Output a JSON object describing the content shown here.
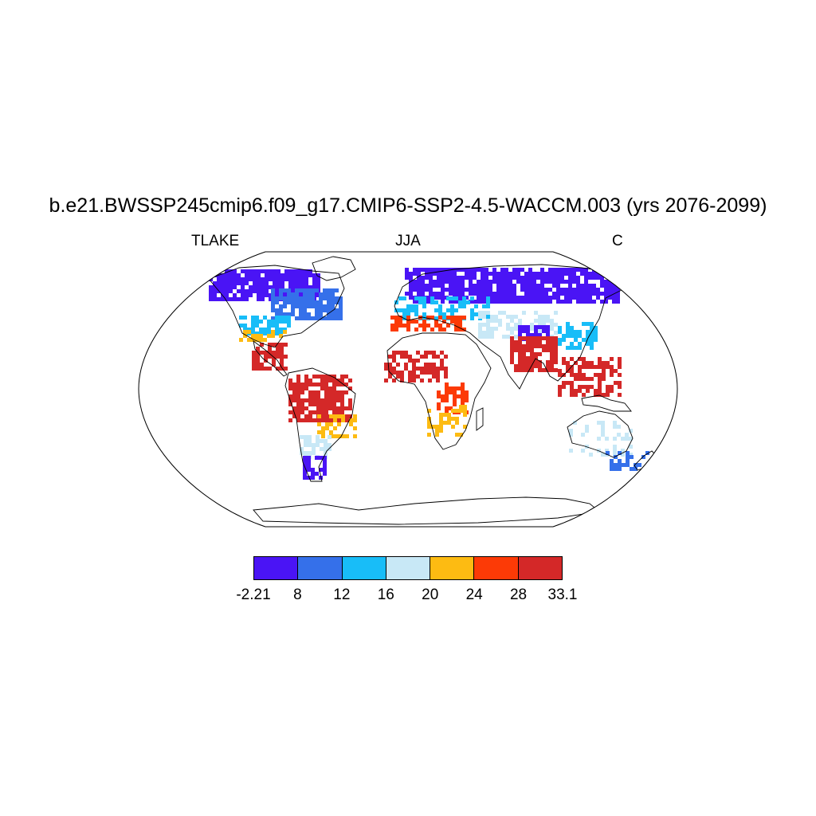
{
  "title": "b.e21.BWSSP245cmip6.f09_g17.CMIP6-SSP2-4.5-WACCM.003 (yrs 2076-2099)",
  "subtitle": {
    "left": "TLAKE",
    "center": "JJA",
    "right": "C"
  },
  "legend": {
    "colors": [
      "#4a14f5",
      "#3570ea",
      "#18bdf8",
      "#c8e8f6",
      "#fdbb12",
      "#fc3a06",
      "#d42828"
    ],
    "tick_labels": [
      "-2.21",
      "8",
      "12",
      "16",
      "20",
      "24",
      "28",
      "33.1"
    ]
  },
  "map": {
    "projection": "robinson",
    "regions": [
      {
        "region": "northern Canada / Alaska",
        "color": "#4a14f5"
      },
      {
        "region": "eastern Canada",
        "color": "#3570ea"
      },
      {
        "region": "northern United States",
        "color": "#18bdf8"
      },
      {
        "region": "southern United States",
        "color": "#fdbb12"
      },
      {
        "region": "Central America",
        "color": "#d42828"
      },
      {
        "region": "Amazon basin",
        "color": "#d42828"
      },
      {
        "region": "southern Brazil",
        "color": "#fdbb12"
      },
      {
        "region": "Argentina",
        "color": "#c8e8f6"
      },
      {
        "region": "Patagonia",
        "color": "#4a14f5"
      },
      {
        "region": "Scandinavia / Russia",
        "color": "#4a14f5"
      },
      {
        "region": "Central Europe",
        "color": "#18bdf8"
      },
      {
        "region": "Mediterranean",
        "color": "#fc3a06"
      },
      {
        "region": "Central Asia",
        "color": "#c8e8f6"
      },
      {
        "region": "Tibetan Plateau",
        "color": "#4a14f5"
      },
      {
        "region": "India",
        "color": "#d42828"
      },
      {
        "region": "East China",
        "color": "#18bdf8"
      },
      {
        "region": "Sahel",
        "color": "#d42828"
      },
      {
        "region": "East Africa",
        "color": "#fc3a06"
      },
      {
        "region": "Southern Africa",
        "color": "#fdbb12"
      },
      {
        "region": "Southeast Asia",
        "color": "#d42828"
      },
      {
        "region": "Australia",
        "color": "#c8e8f6"
      },
      {
        "region": "New Zealand",
        "color": "#3570ea"
      }
    ]
  }
}
